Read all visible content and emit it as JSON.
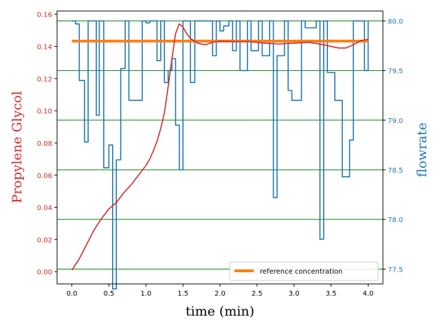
{
  "chart_data": {
    "type": "line",
    "title": "",
    "xlabel": "time (min)",
    "xlim": [
      -0.2,
      4.2
    ],
    "xticks": [
      0.0,
      0.5,
      1.0,
      1.5,
      2.0,
      2.5,
      3.0,
      3.5,
      4.0
    ],
    "xtick_labels": [
      "0.0",
      "0.5",
      "1.0",
      "1.5",
      "2.0",
      "2.5",
      "3.0",
      "3.5",
      "4.0"
    ],
    "left_axis": {
      "label": "Propylene Glycol",
      "color": "#d62728",
      "ylim": [
        -0.0076,
        0.162
      ],
      "ticks": [
        0.0,
        0.02,
        0.04,
        0.06,
        0.08,
        0.1,
        0.12,
        0.14,
        0.16
      ],
      "tick_labels": [
        "0.00",
        "0.02",
        "0.04",
        "0.06",
        "0.08",
        "0.10",
        "0.12",
        "0.14",
        "0.16"
      ]
    },
    "right_axis": {
      "label": "flowrate",
      "color": "#1f77b4",
      "ylim": [
        77.35,
        80.1
      ],
      "ticks": [
        77.5,
        78.0,
        78.5,
        79.0,
        79.5,
        80.0
      ],
      "tick_labels": [
        "77.5",
        "78.0",
        "78.5",
        "79.0",
        "79.5",
        "80.0"
      ],
      "gridlines": true,
      "grid_color": "#008000"
    },
    "legend": {
      "position": "lower-right",
      "entries": [
        "reference concentration"
      ]
    },
    "series": [
      {
        "name": "reference concentration",
        "axis": "left",
        "color": "#ff7f0e",
        "kind": "line",
        "x": [
          0.0,
          4.0
        ],
        "values": [
          0.1433,
          0.1433
        ]
      },
      {
        "axis": "left",
        "color": "#d62728",
        "kind": "line",
        "x": [
          0.0,
          0.1,
          0.2,
          0.3,
          0.4,
          0.5,
          0.6,
          0.7,
          0.8,
          0.9,
          1.0,
          1.05,
          1.1,
          1.15,
          1.2,
          1.25,
          1.3,
          1.35,
          1.4,
          1.45,
          1.5,
          1.55,
          1.6,
          1.7,
          1.8,
          1.9,
          2.0,
          2.2,
          2.4,
          2.6,
          2.8,
          3.0,
          3.2,
          3.4,
          3.6,
          3.7,
          3.8,
          3.9,
          4.0
        ],
        "values": [
          0.001,
          0.008,
          0.017,
          0.026,
          0.033,
          0.039,
          0.043,
          0.049,
          0.054,
          0.06,
          0.066,
          0.07,
          0.075,
          0.081,
          0.089,
          0.099,
          0.115,
          0.132,
          0.148,
          0.154,
          0.152,
          0.148,
          0.145,
          0.142,
          0.141,
          0.1425,
          0.1432,
          0.143,
          0.143,
          0.142,
          0.1415,
          0.142,
          0.1425,
          0.141,
          0.139,
          0.139,
          0.141,
          0.1435,
          0.1445
        ]
      },
      {
        "axis": "right",
        "color": "#1f77b4",
        "kind": "step",
        "x": [
          0.0,
          0.05,
          0.1,
          0.17,
          0.22,
          0.33,
          0.37,
          0.43,
          0.5,
          0.55,
          0.6,
          0.66,
          0.72,
          0.77,
          0.95,
          1.0,
          1.05,
          1.15,
          1.2,
          1.25,
          1.3,
          1.35,
          1.4,
          1.45,
          1.5,
          1.6,
          1.66,
          1.72,
          1.9,
          1.95,
          2.0,
          2.05,
          2.12,
          2.17,
          2.22,
          2.27,
          2.37,
          2.42,
          2.52,
          2.57,
          2.67,
          2.72,
          2.77,
          2.87,
          2.92,
          2.97,
          3.1,
          3.15,
          3.3,
          3.35,
          3.4,
          3.45,
          3.55,
          3.6,
          3.65,
          3.75,
          3.8,
          3.95,
          4.0
        ],
        "values": [
          80.0,
          79.97,
          79.4,
          78.78,
          80.0,
          79.05,
          80.0,
          78.52,
          78.75,
          77.3,
          78.6,
          79.52,
          80.0,
          79.2,
          80.0,
          79.98,
          80.0,
          79.6,
          80.0,
          79.38,
          79.5,
          79.62,
          78.95,
          78.5,
          80.0,
          79.38,
          80.0,
          80.0,
          79.65,
          80.0,
          79.9,
          79.95,
          80.0,
          79.7,
          80.0,
          79.5,
          80.0,
          79.7,
          80.0,
          79.65,
          80.0,
          78.22,
          79.65,
          80.0,
          79.3,
          79.2,
          80.0,
          79.93,
          80.0,
          77.8,
          80.0,
          79.48,
          79.2,
          79.2,
          78.43,
          78.8,
          80.0,
          79.5,
          80.0
        ]
      }
    ]
  }
}
